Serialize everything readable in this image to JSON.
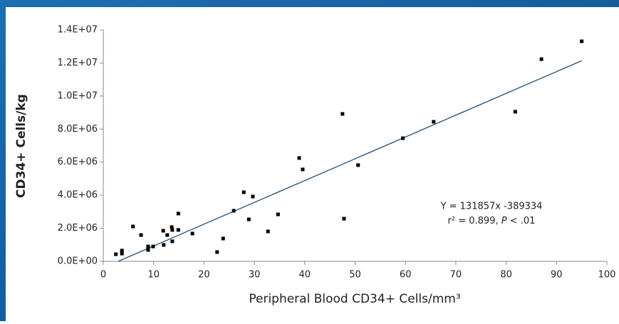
{
  "chart_data": {
    "type": "scatter",
    "xlabel": "Peripheral Blood CD34+ Cells/mm³",
    "ylabel": "CD34+ Cells/kg",
    "x": [
      2.5,
      3.7,
      3.7,
      5.9,
      7.5,
      8.9,
      8.9,
      9.9,
      11.9,
      12.0,
      12.7,
      13.6,
      13.7,
      13.7,
      14.9,
      14.9,
      17.7,
      22.6,
      23.8,
      25.9,
      27.9,
      28.9,
      29.7,
      32.7,
      34.7,
      38.9,
      39.6,
      47.5,
      47.8,
      50.6,
      59.5,
      65.6,
      81.8,
      87.0,
      95.0
    ],
    "values": [
      430000,
      650000,
      470000,
      2110000,
      1590000,
      900000,
      690000,
      900000,
      1850000,
      990000,
      1590000,
      2070000,
      1900000,
      1210000,
      2890000,
      1900000,
      1680000,
      560000,
      1380000,
      3060000,
      4180000,
      2540000,
      3920000,
      1810000,
      2840000,
      6250000,
      5560000,
      8920000,
      2580000,
      5820000,
      7450000,
      8440000,
      9050000,
      12230000,
      13310000
    ],
    "color": "#000000",
    "trendline": {
      "slope": 131857,
      "intercept": -389334,
      "x": [
        3,
        95
      ],
      "color": "#1f4e79"
    },
    "annotation": {
      "equation": "Y = 131857x -389334",
      "fit": [
        "r² = 0.899, ",
        "P",
        " < .01"
      ]
    },
    "xlim": [
      0,
      100
    ],
    "xticks": [
      0,
      10,
      20,
      30,
      40,
      50,
      60,
      70,
      80,
      90,
      100
    ],
    "ylim": [
      0,
      14000000
    ],
    "yticks": [
      {
        "value": 0,
        "label": "0.0E+00"
      },
      {
        "value": 2000000,
        "label": "2.0E+06"
      },
      {
        "value": 4000000,
        "label": "4.0E+06"
      },
      {
        "value": 6000000,
        "label": "6.0E+06"
      },
      {
        "value": 8000000,
        "label": "8.0E+06"
      },
      {
        "value": 10000000,
        "label": "1.0E+07"
      },
      {
        "value": 12000000,
        "label": "1.2E+07"
      },
      {
        "value": 14000000,
        "label": "1.4E+07"
      }
    ],
    "grid": false
  }
}
